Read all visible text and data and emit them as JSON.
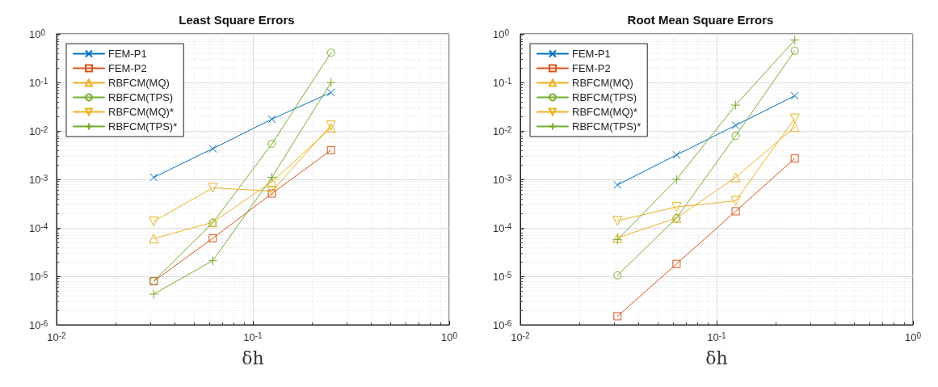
{
  "chart_data": [
    {
      "type": "line",
      "title": "Least Square Errors",
      "xlabel": "δh",
      "log": "xy",
      "grid": true,
      "legend": "top left",
      "line_style": "solid",
      "xlim": [
        0.01,
        1
      ],
      "xticks": [
        {
          "value": 0.01,
          "label": "10$^{-2}$"
        },
        {
          "value": 0.1,
          "label": "10$^{-1}$"
        },
        {
          "value": 1,
          "label": "10$^{0}$"
        }
      ],
      "ylim": [
        1e-06,
        1
      ],
      "yticks": [
        {
          "value": 1e-06,
          "label": "10$^{-6}$"
        },
        {
          "value": 1e-05,
          "label": "10$^{-5}$"
        },
        {
          "value": 0.0001,
          "label": "10$^{-4}$"
        },
        {
          "value": 0.001,
          "label": "10$^{-3}$"
        },
        {
          "value": 0.01,
          "label": "10$^{-2}$"
        },
        {
          "value": 0.1,
          "label": "10$^{-1}$"
        },
        {
          "value": 1,
          "label": "10$^{0}$"
        }
      ],
      "x": [
        0.03125,
        0.0625,
        0.125,
        0.25
      ],
      "series": [
        {
          "name": "FEM-P1",
          "color": "#0072bd",
          "marker": "cross",
          "values": [
            0.0011,
            0.0043,
            0.0175,
            0.062
          ]
        },
        {
          "name": "FEM-P2",
          "color": "#d95319",
          "marker": "square",
          "values": [
            7.9e-06,
            6.1e-05,
            0.00051,
            0.004
          ]
        },
        {
          "name": "RBFCM(MQ)",
          "color": "#edb120",
          "marker": "triangle",
          "values": [
            6e-05,
            0.00013,
            0.00089,
            0.0115
          ]
        },
        {
          "name": "RBFCM(TPS)",
          "color": "#77ac30",
          "marker": "circle",
          "values": [
            8e-06,
            0.000127,
            0.0054,
            0.41
          ]
        },
        {
          "name": "RBFCM(MQ)*",
          "color": "#edb120",
          "marker": "triangle-down",
          "values": [
            0.000135,
            0.00067,
            0.00057,
            0.013
          ]
        },
        {
          "name": "RBFCM(TPS)*",
          "color": "#77ac30",
          "marker": "plus",
          "values": [
            4.3e-06,
            2.1e-05,
            0.0011,
            0.1
          ]
        }
      ]
    },
    {
      "type": "line",
      "title": "Root Mean Square Errors",
      "xlabel": "δh",
      "log": "xy",
      "grid": true,
      "legend": "top left",
      "line_style": "solid",
      "xlim": [
        0.01,
        1
      ],
      "xticks": [
        {
          "value": 0.01,
          "label": "10$^{-2}$"
        },
        {
          "value": 0.1,
          "label": "10$^{-1}$"
        },
        {
          "value": 1,
          "label": "10$^{0}$"
        }
      ],
      "ylim": [
        1e-06,
        1
      ],
      "yticks": [
        {
          "value": 1e-06,
          "label": "10$^{-6}$"
        },
        {
          "value": 1e-05,
          "label": "10$^{-5}$"
        },
        {
          "value": 0.0001,
          "label": "10$^{-4}$"
        },
        {
          "value": 0.001,
          "label": "10$^{-3}$"
        },
        {
          "value": 0.01,
          "label": "10$^{-2}$"
        },
        {
          "value": 0.1,
          "label": "10$^{-1}$"
        },
        {
          "value": 1,
          "label": "10$^{0}$"
        }
      ],
      "x": [
        0.03125,
        0.0625,
        0.125,
        0.25
      ],
      "series": [
        {
          "name": "FEM-P1",
          "color": "#0072bd",
          "marker": "cross",
          "values": [
            0.00077,
            0.0032,
            0.013,
            0.053
          ]
        },
        {
          "name": "FEM-P2",
          "color": "#d95319",
          "marker": "square",
          "values": [
            1.5e-06,
            1.8e-05,
            0.00022,
            0.0027
          ]
        },
        {
          "name": "RBFCM(MQ)",
          "color": "#edb120",
          "marker": "triangle",
          "values": [
            6.2e-05,
            0.00016,
            0.0011,
            0.012
          ]
        },
        {
          "name": "RBFCM(TPS)",
          "color": "#77ac30",
          "marker": "circle",
          "values": [
            1.05e-05,
            0.00016,
            0.0079,
            0.45
          ]
        },
        {
          "name": "RBFCM(MQ)*",
          "color": "#edb120",
          "marker": "triangle-down",
          "values": [
            0.00014,
            0.00027,
            0.00036,
            0.018
          ]
        },
        {
          "name": "RBFCM(TPS)*",
          "color": "#77ac30",
          "marker": "plus",
          "values": [
            5.7e-05,
            0.001,
            0.034,
            0.75
          ]
        }
      ]
    }
  ]
}
